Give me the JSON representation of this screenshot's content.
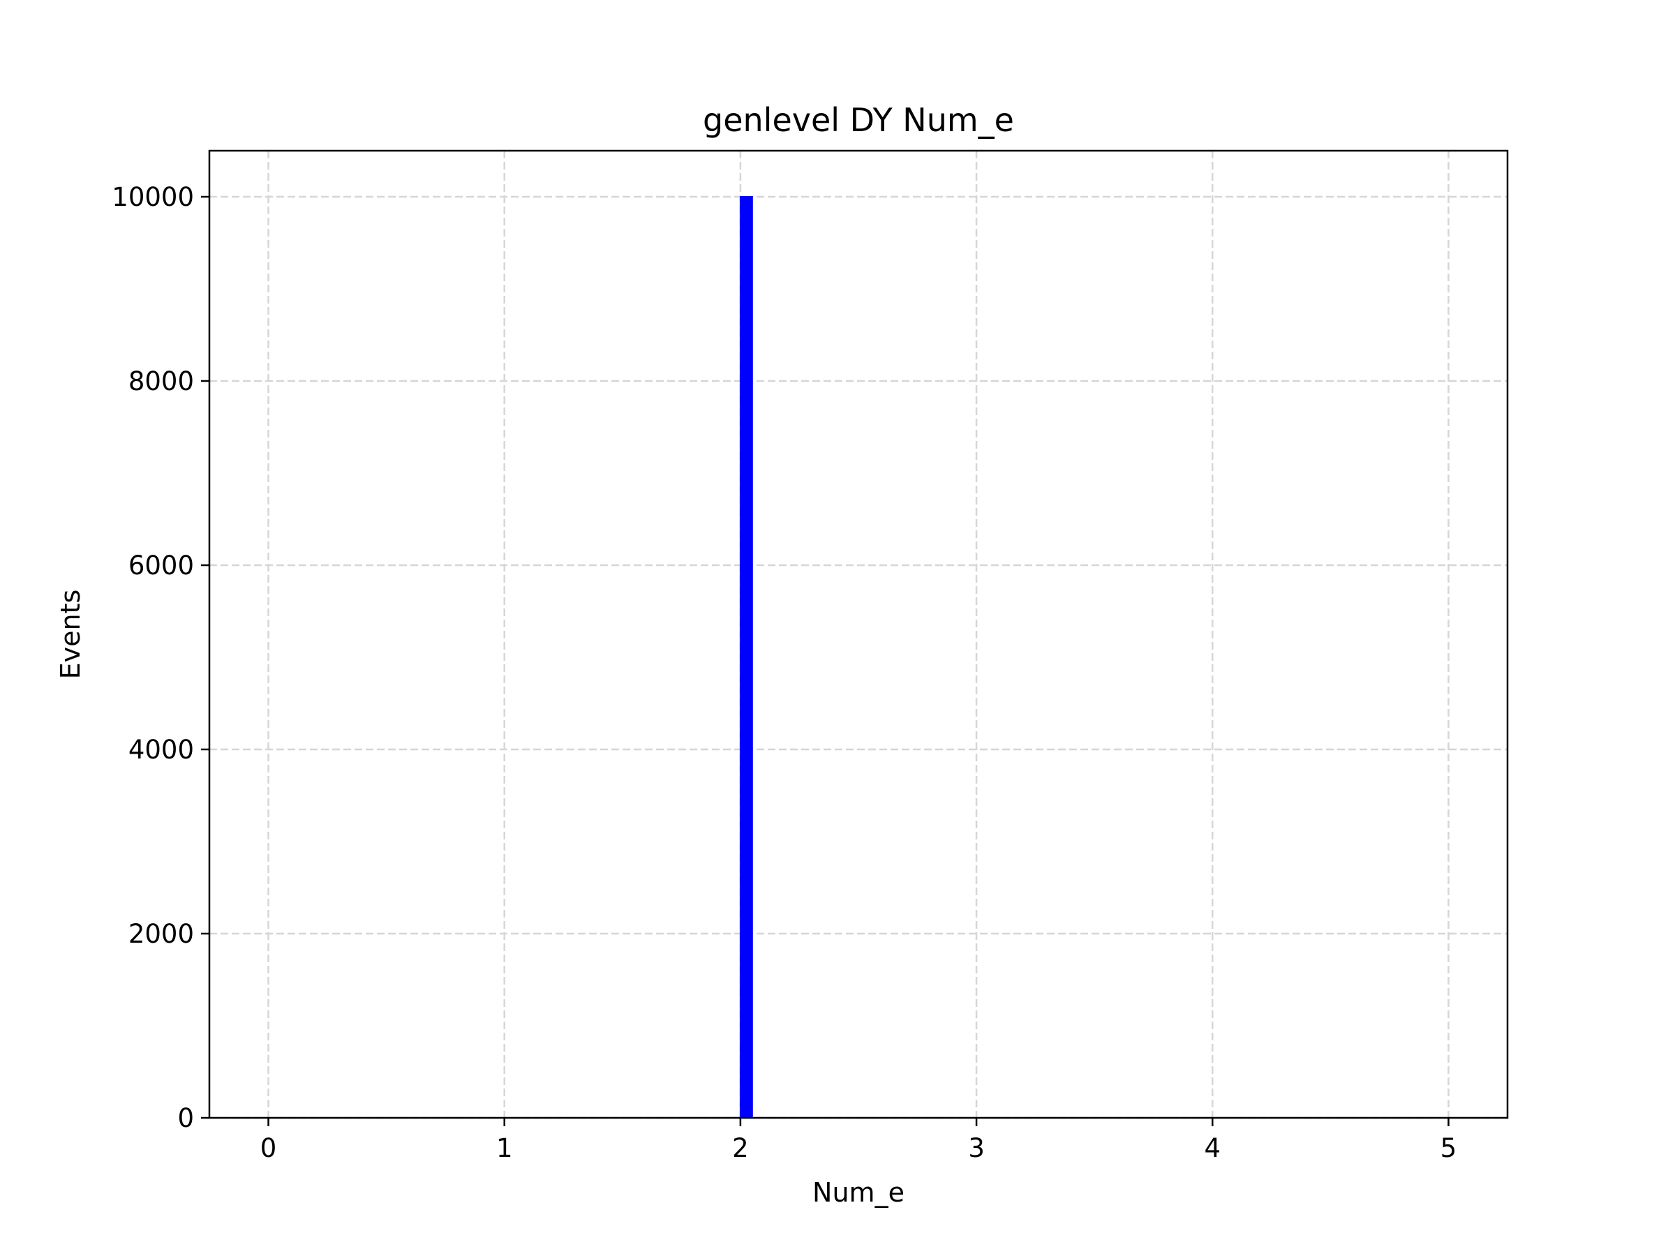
{
  "chart_data": {
    "type": "bar",
    "title": "genlevel DY Num_e",
    "xlabel": "Num_e",
    "ylabel": "Events",
    "xlim": [
      -0.25,
      5.25
    ],
    "ylim": [
      0,
      10500
    ],
    "xticks": [
      0,
      1,
      2,
      3,
      4,
      5
    ],
    "xtick_labels": [
      "0",
      "1",
      "2",
      "3",
      "4",
      "5"
    ],
    "yticks": [
      0,
      2000,
      4000,
      6000,
      8000,
      10000
    ],
    "ytick_labels": [
      "0",
      "2000",
      "4000",
      "6000",
      "8000",
      "10000"
    ],
    "grid": true,
    "bars": [
      {
        "x_start": 2.0,
        "x_end": 2.05,
        "value": 10000
      }
    ],
    "colors": {
      "bar": "#0000ff",
      "bar_edge": "#0000ff",
      "grid": "#d6d6d6"
    }
  }
}
